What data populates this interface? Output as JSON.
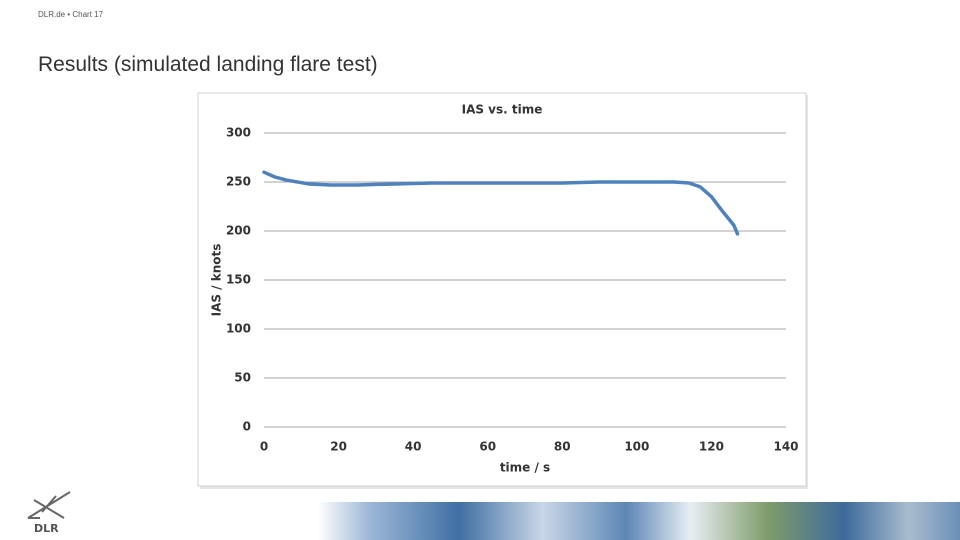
{
  "header": "DLR.de • Chart 17",
  "title": "Results (simulated landing flare test)",
  "logo_text": "DLR",
  "chart_data": {
    "type": "line",
    "title": "IAS vs. time",
    "x_label": "time / s",
    "y_label": "IAS / knots",
    "x": [
      0,
      3,
      6,
      12,
      18,
      25,
      35,
      45,
      60,
      80,
      90,
      110,
      114,
      117,
      120,
      123,
      126,
      127
    ],
    "values": [
      260,
      255,
      252,
      248,
      247,
      247,
      248,
      249,
      249,
      249,
      250,
      250,
      249,
      245,
      235,
      220,
      206,
      197
    ],
    "color": "#4f81bd",
    "xlim": [
      0,
      140
    ],
    "xticks": [
      0,
      20,
      40,
      60,
      80,
      100,
      120,
      140
    ],
    "ylim": [
      0,
      300
    ],
    "yticks": [
      0,
      50,
      100,
      150,
      200,
      250,
      300
    ],
    "grid": true
  }
}
